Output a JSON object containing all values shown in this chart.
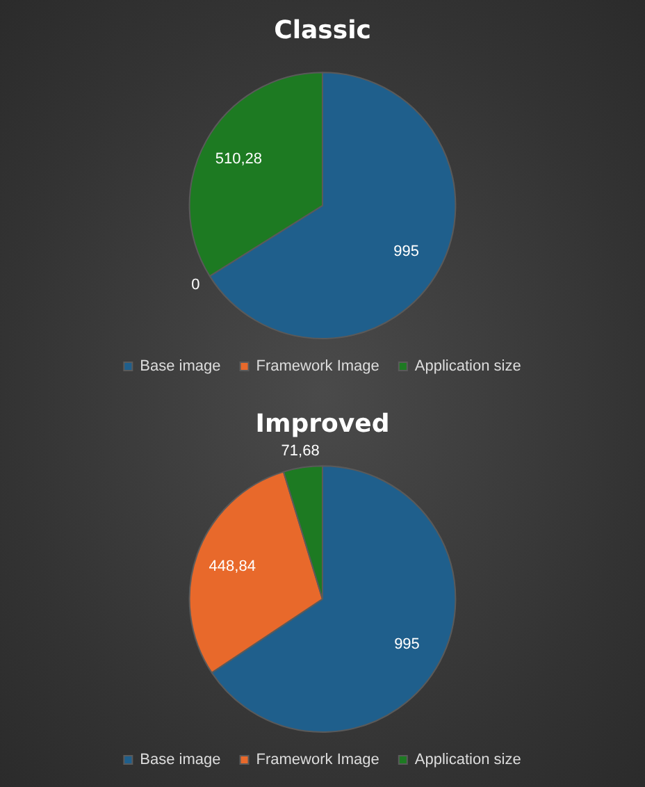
{
  "chart_data": [
    {
      "type": "pie",
      "title": "Classic",
      "categories": [
        "Base image",
        "Framework Image",
        "Application size"
      ],
      "values": [
        995,
        0,
        510.28
      ],
      "colors": [
        "#1f5f8c",
        "#e8692b",
        "#1d7a22"
      ],
      "value_labels": [
        "995",
        "0",
        "510,28"
      ],
      "legend": "bottom"
    },
    {
      "type": "pie",
      "title": "Improved",
      "categories": [
        "Base image",
        "Framework Image",
        "Application size"
      ],
      "values": [
        995,
        448.84,
        71.68
      ],
      "colors": [
        "#1f5f8c",
        "#e8692b",
        "#1d7a22"
      ],
      "value_labels": [
        "995",
        "448,84",
        "71,68"
      ],
      "legend": "bottom"
    }
  ]
}
